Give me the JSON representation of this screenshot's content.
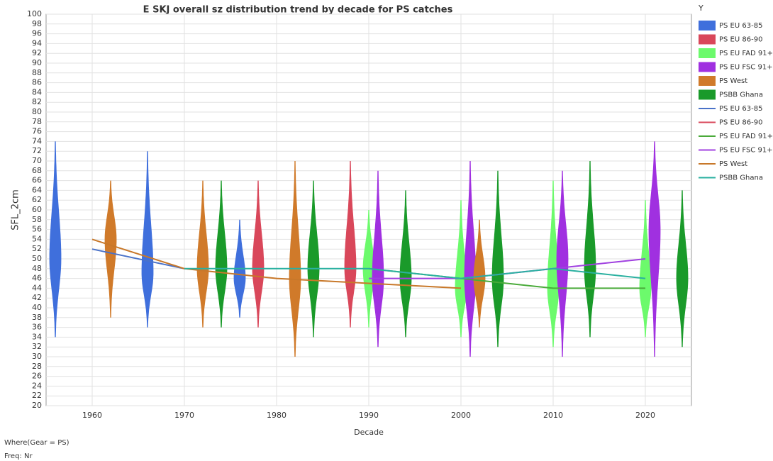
{
  "chart_data": {
    "type": "violin",
    "title": "E SKJ overall sz distribution trend by decade for  PS catches",
    "x_label": "Decade",
    "y_label": "SFL_2cm",
    "legend_title": "Y",
    "footnotes": [
      "Where(Gear = PS)",
      "Freq: Nr"
    ],
    "xlim": [
      1955,
      2025
    ],
    "xticks": [
      1960,
      1970,
      1980,
      1990,
      2000,
      2010,
      2020
    ],
    "ylim": [
      20,
      100
    ],
    "yticks": [
      20,
      22,
      24,
      26,
      28,
      30,
      32,
      34,
      36,
      38,
      40,
      42,
      44,
      46,
      48,
      50,
      52,
      54,
      56,
      58,
      60,
      62,
      64,
      66,
      68,
      70,
      72,
      74,
      76,
      78,
      80,
      82,
      84,
      86,
      88,
      90,
      92,
      94,
      96,
      98,
      100
    ],
    "grid": true,
    "violin_series": [
      {
        "name": "PS EU 63-85",
        "color": "#3f6fdc",
        "violins": [
          {
            "x": 1956,
            "min": 34,
            "max": 74,
            "peak": 50
          },
          {
            "x": 1966,
            "min": 36,
            "max": 72,
            "peak": 47
          },
          {
            "x": 1976,
            "min": 38,
            "max": 58,
            "peak": 46
          }
        ]
      },
      {
        "name": "PS EU 86-90",
        "color": "#d9475a",
        "violins": [
          {
            "x": 1978,
            "min": 36,
            "max": 66,
            "peak": 48
          },
          {
            "x": 1988,
            "min": 36,
            "max": 70,
            "peak": 48
          }
        ]
      },
      {
        "name": "PS EU FAD 91+",
        "color": "#6cfa6c",
        "violins": [
          {
            "x": 1990,
            "min": 36,
            "max": 60,
            "peak": 48
          },
          {
            "x": 2000,
            "min": 34,
            "max": 62,
            "peak": 44
          },
          {
            "x": 2010,
            "min": 32,
            "max": 66,
            "peak": 44
          },
          {
            "x": 2020,
            "min": 34,
            "max": 62,
            "peak": 44
          }
        ]
      },
      {
        "name": "PS EU FSC 91+",
        "color": "#a030e0",
        "violins": [
          {
            "x": 1991,
            "min": 32,
            "max": 68,
            "peak": 46
          },
          {
            "x": 2001,
            "min": 30,
            "max": 70,
            "peak": 46
          },
          {
            "x": 2011,
            "min": 30,
            "max": 68,
            "peak": 50
          },
          {
            "x": 2021,
            "min": 30,
            "max": 74,
            "peak": 56
          }
        ]
      },
      {
        "name": "PS West",
        "color": "#d07a2a",
        "violins": [
          {
            "x": 1962,
            "min": 38,
            "max": 66,
            "peak": 54
          },
          {
            "x": 1972,
            "min": 36,
            "max": 66,
            "peak": 48
          },
          {
            "x": 1982,
            "min": 30,
            "max": 70,
            "peak": 46
          },
          {
            "x": 2002,
            "min": 36,
            "max": 58,
            "peak": 46
          }
        ]
      },
      {
        "name": "PSBB Ghana",
        "color": "#1a9a2a",
        "violins": [
          {
            "x": 1974,
            "min": 36,
            "max": 66,
            "peak": 48
          },
          {
            "x": 1984,
            "min": 34,
            "max": 66,
            "peak": 48
          },
          {
            "x": 1994,
            "min": 34,
            "max": 64,
            "peak": 46
          },
          {
            "x": 2004,
            "min": 32,
            "max": 68,
            "peak": 46
          },
          {
            "x": 2014,
            "min": 34,
            "max": 70,
            "peak": 48
          },
          {
            "x": 2024,
            "min": 32,
            "max": 64,
            "peak": 46
          }
        ]
      }
    ],
    "line_series": [
      {
        "name": "PS EU 63-85",
        "color": "#4a72c8",
        "x": [
          1960,
          1970
        ],
        "values": [
          52,
          48
        ]
      },
      {
        "name": "PS EU 86-90",
        "color": "#d9475a",
        "x": [
          1990
        ],
        "values": [
          48
        ]
      },
      {
        "name": "PS EU FAD 91+",
        "color": "#4aaa3a",
        "x": [
          1990,
          2000,
          2010,
          2020
        ],
        "values": [
          48,
          46,
          44,
          44
        ]
      },
      {
        "name": "PS EU FSC 91+",
        "color": "#a040e0",
        "x": [
          1990,
          2000,
          2010,
          2020
        ],
        "values": [
          46,
          46,
          48,
          50
        ]
      },
      {
        "name": "PS West",
        "color": "#c8782a",
        "x": [
          1960,
          1970,
          1980,
          1990,
          2000
        ],
        "values": [
          54,
          48,
          46,
          45,
          44
        ]
      },
      {
        "name": "PSBB Ghana",
        "color": "#2ab0a0",
        "x": [
          1970,
          1980,
          1990,
          2000,
          2010,
          2020
        ],
        "values": [
          48,
          48,
          48,
          46,
          48,
          46
        ]
      }
    ]
  }
}
